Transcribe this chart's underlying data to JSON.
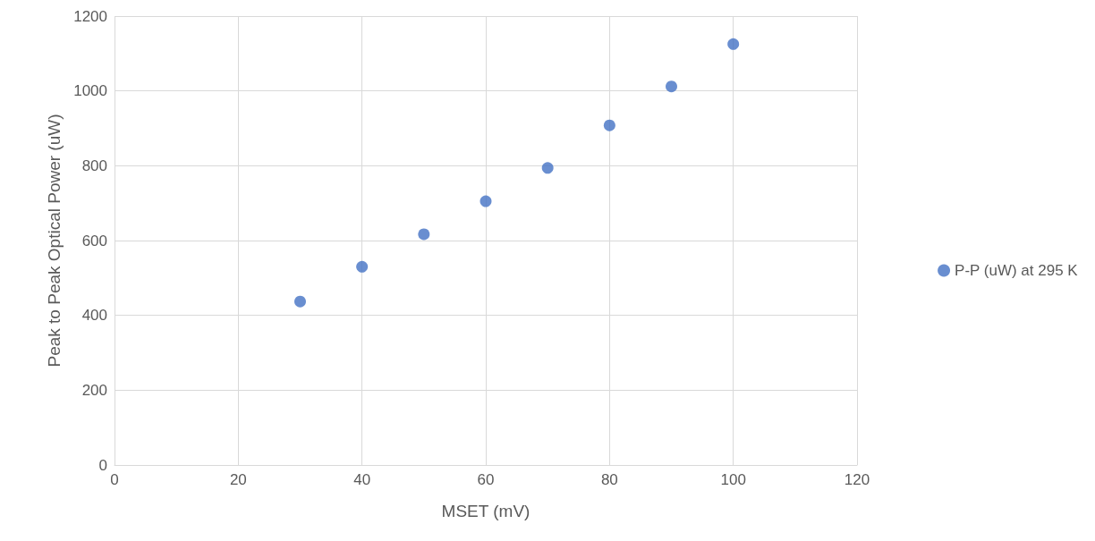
{
  "chart_data": {
    "type": "scatter",
    "xlabel": "MSET (mV)",
    "ylabel": "Peak to Peak Optical Power (uW)",
    "x": [
      30,
      40,
      50,
      60,
      70,
      80,
      90,
      100
    ],
    "series": [
      {
        "name": "P-P (uW) at 295 K",
        "color": "#4472c4",
        "values": [
          437,
          530,
          617,
          705,
          794,
          908,
          1012,
          1125
        ]
      }
    ],
    "xlim": [
      0,
      120
    ],
    "xticks": [
      0,
      20,
      40,
      60,
      80,
      100,
      120
    ],
    "ylim": [
      0,
      1200
    ],
    "yticks": [
      0,
      200,
      400,
      600,
      800,
      1000,
      1200
    ],
    "grid": true,
    "legend": "right",
    "marker": "circle"
  }
}
